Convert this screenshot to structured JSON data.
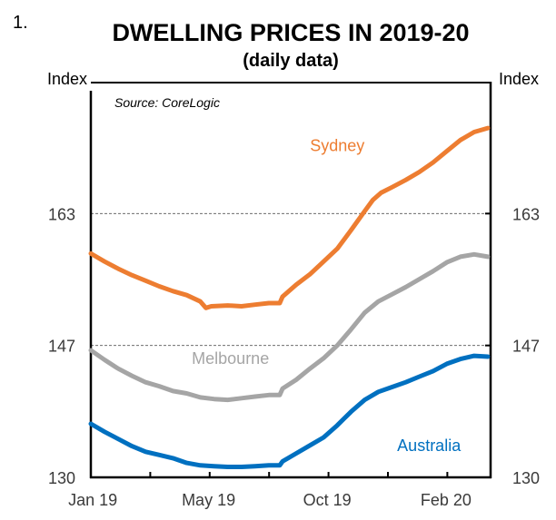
{
  "figure_number": "1.",
  "chart_data": {
    "type": "line",
    "title": "DWELLING PRICES IN 2019-20",
    "subtitle": "(daily data)",
    "source": "Source: CoreLogic",
    "ylabel_left": "Index",
    "ylabel_right": "Index",
    "xlabel": "",
    "x_unit": "months since Jan 2019",
    "xlim": [
      0,
      14.6
    ],
    "ylim": [
      130,
      179.5
    ],
    "grid": "horizontal dashed at 146.5 and 163",
    "y_ticks": [
      {
        "value": 130,
        "label": "130"
      },
      {
        "value": 146.5,
        "label": "147"
      },
      {
        "value": 163,
        "label": "163"
      }
    ],
    "x_tick_step_months": 2.17,
    "x_tick_labels": [
      {
        "value": 0.07,
        "label": "Jan 19"
      },
      {
        "value": 4.3,
        "label": "May 19"
      },
      {
        "value": 8.63,
        "label": "Oct 19"
      },
      {
        "value": 12.97,
        "label": "Feb 20"
      }
    ],
    "series": [
      {
        "name": "Sydney",
        "color": "#ED7D31",
        "label_pos": [
          9.0,
          170.8
        ],
        "x": [
          0,
          0.5,
          1,
          1.5,
          2,
          2.5,
          3,
          3.5,
          4.0,
          4.2,
          4.4,
          5,
          5.5,
          6,
          6.5,
          6.9,
          7.0,
          7.5,
          8,
          8.5,
          9,
          9.5,
          10,
          10.3,
          10.6,
          11,
          11.5,
          12,
          12.5,
          13,
          13.5,
          14,
          14.5
        ],
        "y": [
          158.0,
          157.0,
          156.1,
          155.3,
          154.6,
          153.9,
          153.3,
          152.8,
          152.0,
          151.2,
          151.4,
          151.5,
          151.4,
          151.6,
          151.8,
          151.8,
          152.6,
          154.1,
          155.4,
          157.0,
          158.6,
          160.9,
          163.3,
          164.7,
          165.6,
          166.3,
          167.2,
          168.2,
          169.4,
          170.8,
          172.2,
          173.2,
          173.7
        ]
      },
      {
        "name": "Melbourne",
        "color": "#A5A5A5",
        "label_pos": [
          5.1,
          144.2
        ],
        "x": [
          0,
          0.5,
          1,
          1.5,
          2,
          2.5,
          3,
          3.5,
          4,
          4.5,
          5,
          5.5,
          6,
          6.5,
          6.9,
          7.0,
          7.5,
          8,
          8.5,
          9,
          9.5,
          10,
          10.5,
          11,
          11.5,
          12,
          12.5,
          13,
          13.5,
          14,
          14.5
        ],
        "y": [
          145.9,
          144.7,
          143.6,
          142.7,
          141.9,
          141.4,
          140.8,
          140.5,
          140.0,
          139.8,
          139.7,
          139.9,
          140.1,
          140.3,
          140.3,
          141.1,
          142.2,
          143.6,
          144.9,
          146.5,
          148.5,
          150.6,
          152.0,
          152.9,
          153.8,
          154.8,
          155.8,
          156.9,
          157.6,
          157.9,
          157.6
        ]
      },
      {
        "name": "Australia",
        "color": "#0070C0",
        "label_pos": [
          12.35,
          133.3
        ],
        "x": [
          0,
          0.5,
          1,
          1.5,
          2,
          2.5,
          3,
          3.5,
          4,
          4.5,
          5,
          5.5,
          6,
          6.5,
          6.9,
          7.0,
          7.5,
          8,
          8.5,
          9,
          9.5,
          10,
          10.5,
          11,
          11.5,
          12,
          12.5,
          13,
          13.5,
          14,
          14.5
        ],
        "y": [
          136.7,
          135.7,
          134.8,
          133.9,
          133.2,
          132.8,
          132.4,
          131.8,
          131.5,
          131.4,
          131.3,
          131.3,
          131.4,
          131.5,
          131.5,
          132.0,
          133.0,
          134.0,
          135.0,
          136.5,
          138.2,
          139.7,
          140.7,
          141.3,
          141.9,
          142.6,
          143.3,
          144.2,
          144.8,
          145.2,
          145.1
        ]
      }
    ]
  }
}
